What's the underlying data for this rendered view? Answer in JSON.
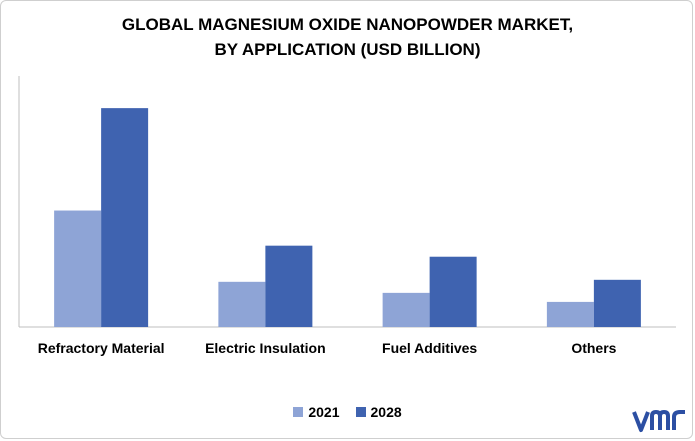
{
  "chart_data": {
    "type": "bar",
    "title_lines": [
      "GLOBAL MAGNESIUM OXIDE NANOPOWDER MARKET,",
      "BY APPLICATION (USD BILLION)"
    ],
    "categories": [
      "Refractory Material",
      "Electric Insulation",
      "Fuel Additives",
      "Others"
    ],
    "series": [
      {
        "name": "2021",
        "color": "#8EA4D6",
        "values": [
          0.116,
          0.045,
          0.034,
          0.025
        ]
      },
      {
        "name": "2028",
        "color": "#3F63B0",
        "values": [
          0.218,
          0.081,
          0.07,
          0.047
        ]
      }
    ],
    "ylim": [
      0,
      0.25
    ],
    "xlabel": "",
    "ylabel": ""
  },
  "brand": {
    "logo_icon": "vmr-logo-icon",
    "logo_color": "#2C4FA3"
  }
}
